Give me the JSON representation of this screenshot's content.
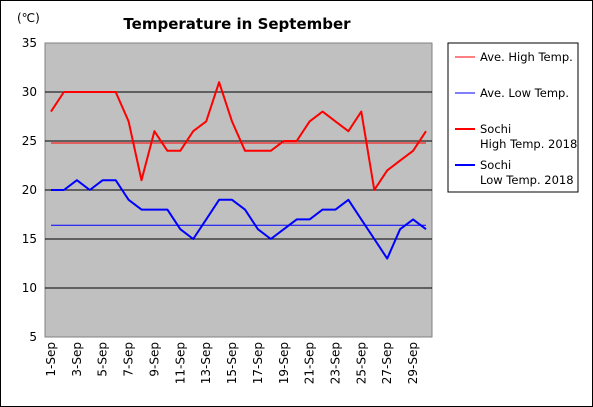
{
  "chart_data": {
    "type": "line",
    "title": "Temperature in September",
    "unit_label": "(℃)",
    "ylim": [
      5,
      35
    ],
    "yticks": [
      5,
      10,
      15,
      20,
      25,
      30,
      35
    ],
    "grid": true,
    "legend_placement": "right",
    "plot_background": "#c0c0c0",
    "categories": [
      "1-Sep",
      "2-Sep",
      "3-Sep",
      "4-Sep",
      "5-Sep",
      "6-Sep",
      "7-Sep",
      "8-Sep",
      "9-Sep",
      "10-Sep",
      "11-Sep",
      "12-Sep",
      "13-Sep",
      "14-Sep",
      "15-Sep",
      "16-Sep",
      "17-Sep",
      "18-Sep",
      "19-Sep",
      "20-Sep",
      "21-Sep",
      "22-Sep",
      "23-Sep",
      "24-Sep",
      "25-Sep",
      "26-Sep",
      "27-Sep",
      "28-Sep",
      "29-Sep",
      "30-Sep"
    ],
    "xtick_labels": [
      "1-Sep",
      "3-Sep",
      "5-Sep",
      "7-Sep",
      "9-Sep",
      "11-Sep",
      "13-Sep",
      "15-Sep",
      "17-Sep",
      "19-Sep",
      "21-Sep",
      "23-Sep",
      "25-Sep",
      "27-Sep",
      "29-Sep"
    ],
    "series": [
      {
        "name": "Ave. High Temp.",
        "color": "#ff0000",
        "width": 1,
        "values": [
          24.8,
          24.8,
          24.8,
          24.8,
          24.8,
          24.8,
          24.8,
          24.8,
          24.8,
          24.8,
          24.8,
          24.8,
          24.8,
          24.8,
          24.8,
          24.8,
          24.8,
          24.8,
          24.8,
          24.8,
          24.8,
          24.8,
          24.8,
          24.8,
          24.8,
          24.8,
          24.8,
          24.8,
          24.8,
          24.8
        ]
      },
      {
        "name": "Ave. Low Temp.",
        "color": "#0000ff",
        "width": 1,
        "values": [
          16.4,
          16.4,
          16.4,
          16.4,
          16.4,
          16.4,
          16.4,
          16.4,
          16.4,
          16.4,
          16.4,
          16.4,
          16.4,
          16.4,
          16.4,
          16.4,
          16.4,
          16.4,
          16.4,
          16.4,
          16.4,
          16.4,
          16.4,
          16.4,
          16.4,
          16.4,
          16.4,
          16.4,
          16.4,
          16.4
        ]
      },
      {
        "name": "Sochi\nHigh Temp. 2018",
        "color": "#ff0000",
        "width": 2,
        "values": [
          28,
          30,
          30,
          30,
          30,
          30,
          27,
          21,
          26,
          24,
          24,
          26,
          27,
          31,
          27,
          24,
          24,
          24,
          25,
          25,
          27,
          28,
          27,
          26,
          28,
          20,
          22,
          23,
          24,
          26
        ]
      },
      {
        "name": "Sochi\nLow Temp. 2018",
        "color": "#0000ff",
        "width": 2,
        "values": [
          20,
          20,
          21,
          20,
          21,
          21,
          19,
          18,
          18,
          18,
          16,
          15,
          17,
          19,
          19,
          18,
          16,
          15,
          16,
          17,
          17,
          18,
          18,
          19,
          17,
          15,
          13,
          16,
          17,
          16
        ]
      }
    ]
  }
}
